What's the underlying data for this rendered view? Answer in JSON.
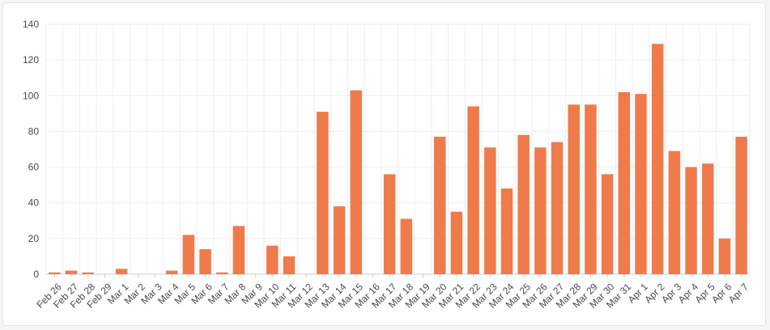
{
  "chart_data": {
    "type": "bar",
    "title": "",
    "xlabel": "",
    "ylabel": "",
    "ylim": [
      0,
      140
    ],
    "yticks": [
      0,
      20,
      40,
      60,
      80,
      100,
      120,
      140
    ],
    "grid": true,
    "legend": "none",
    "bar_color": "#ef7b4b",
    "categories": [
      "Feb 26",
      "Feb 27",
      "Feb 28",
      "Feb 29",
      "Mar 1",
      "Mar 2",
      "Mar 3",
      "Mar 4",
      "Mar 5",
      "Mar 6",
      "Mar 7",
      "Mar 8",
      "Mar 9",
      "Mar 10",
      "Mar 11",
      "Mar 12",
      "Mar 13",
      "Mar 14",
      "Mar 15",
      "Mar 16",
      "Mar 17",
      "Mar 18",
      "Mar 19",
      "Mar 20",
      "Mar 21",
      "Mar 22",
      "Mar 23",
      "Mar 24",
      "Mar 25",
      "Mar 26",
      "Mar 27",
      "Mar 28",
      "Mar 29",
      "Mar 30",
      "Mar 31",
      "Apr 1",
      "Apr 2",
      "Apr 3",
      "Apr 4",
      "Apr 5",
      "Apr 6",
      "Apr 7"
    ],
    "values": [
      1,
      2,
      1,
      0,
      3,
      0,
      0,
      2,
      22,
      14,
      1,
      27,
      0,
      16,
      10,
      0,
      91,
      38,
      103,
      0,
      56,
      31,
      0,
      77,
      35,
      94,
      71,
      48,
      78,
      71,
      74,
      95,
      95,
      56,
      102,
      101,
      129,
      69,
      60,
      62,
      20,
      77
    ]
  }
}
